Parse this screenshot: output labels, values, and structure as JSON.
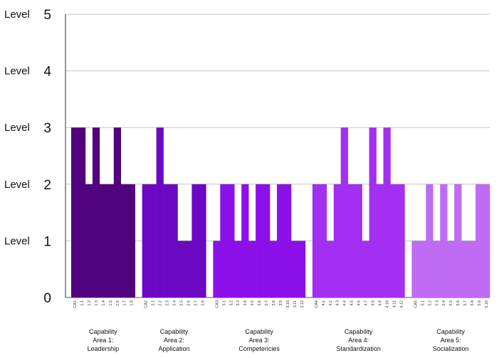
{
  "chart_data": {
    "type": "bar",
    "ylim": [
      0,
      5
    ],
    "y_ticks": [
      {
        "value": 0,
        "word": "",
        "num": "0"
      },
      {
        "value": 1,
        "word": "Level",
        "num": "1"
      },
      {
        "value": 2,
        "word": "Level",
        "num": "2"
      },
      {
        "value": 3,
        "word": "Level",
        "num": "3"
      },
      {
        "value": 4,
        "word": "Level",
        "num": "4"
      },
      {
        "value": 5,
        "word": "Level",
        "num": "5"
      }
    ],
    "grid": true,
    "legend": "none",
    "groups": [
      {
        "label": [
          "Capability",
          "Area 1:",
          "Leadership"
        ],
        "color": "#52047f",
        "categories": [
          "CA1",
          "1.1",
          "1.2",
          "1.3",
          "1.4",
          "1.5",
          "1.6",
          "1.7",
          "1.8"
        ],
        "values": [
          3,
          3,
          2,
          3,
          2,
          2,
          3,
          2,
          2
        ]
      },
      {
        "label": [
          "Capability",
          "Area 2:",
          "Application"
        ],
        "color": "#6c08c4",
        "categories": [
          "CA2",
          "2.1",
          "2.2",
          "2.3",
          "2.4",
          "2.5",
          "2.6",
          "2.7",
          "2.8"
        ],
        "values": [
          2,
          2,
          3,
          2,
          2,
          1,
          1,
          2,
          2
        ]
      },
      {
        "label": [
          "Capability",
          "Area 3:",
          "Competencies"
        ],
        "color": "#8b10ea",
        "categories": [
          "CA3",
          "3.1",
          "3.2",
          "3.3",
          "3.4",
          "3.5",
          "3.6",
          "3.7",
          "3.8",
          "3.9",
          "3.10",
          "3.11",
          "3.12"
        ],
        "values": [
          1,
          2,
          2,
          1,
          2,
          1,
          2,
          2,
          1,
          2,
          2,
          1,
          1
        ]
      },
      {
        "label": [
          "Capability",
          "Area 4:",
          "Standardization"
        ],
        "color": "#a22ff2",
        "categories": [
          "CA4",
          "4.1",
          "4.2",
          "4.3",
          "4.4",
          "4.5",
          "4.6",
          "4.7",
          "4.8",
          "4.9",
          "4.10",
          "4.11",
          "4.12"
        ],
        "values": [
          2,
          2,
          1,
          2,
          3,
          2,
          2,
          1,
          3,
          2,
          3,
          2,
          2
        ]
      },
      {
        "label": [
          "Capability",
          "Area 5:",
          "Socialization"
        ],
        "color": "#bf6bf3",
        "categories": [
          "CA5",
          "5.1",
          "5.2",
          "5.3",
          "5.4",
          "5.5",
          "5.6",
          "5.7",
          "5.8",
          "5.9",
          "5.10"
        ],
        "values": [
          1,
          1,
          2,
          1,
          2,
          1,
          2,
          1,
          1,
          2,
          2
        ]
      }
    ]
  }
}
